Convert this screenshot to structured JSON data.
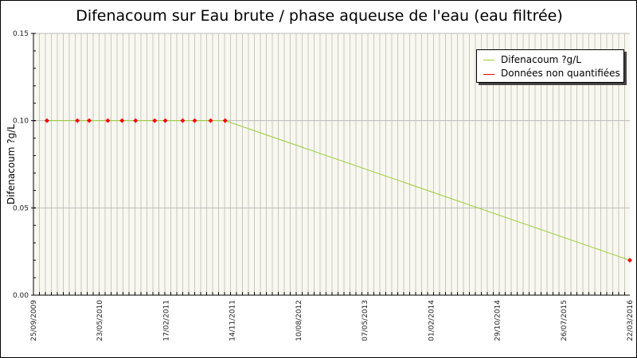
{
  "chart_data": {
    "type": "line",
    "title": "Difenacoum sur Eau brute / phase aqueuse de l'eau (eau filtrée)",
    "xlabel": "",
    "ylabel": "Difenacoum ?g/L",
    "ylim": [
      0,
      0.15
    ],
    "yticks": [
      "0.00",
      "0.05",
      "0.10",
      "0.15"
    ],
    "xticks": [
      "25/09/2009",
      "23/05/2010",
      "17/02/2011",
      "14/11/2011",
      "10/08/2012",
      "07/05/2013",
      "01/02/2014",
      "29/10/2014",
      "26/07/2015",
      "22/03/2016"
    ],
    "grid": true,
    "legend_position": "top-right",
    "legend": [
      "Difenacoum ?g/L",
      "Données non quantifiées"
    ],
    "colors": {
      "line": "#9acd32",
      "non_quantified": "#ff0000",
      "plot_bg": "#f8f8f0",
      "grid": "#c8c8c0"
    },
    "series": [
      {
        "name": "Difenacoum ?g/L",
        "x": [
          "13/11/2009",
          "03/03/2010",
          "15/04/2010",
          "25/06/2010",
          "22/08/2010",
          "16/10/2010",
          "02/01/2011",
          "14/02/2011",
          "26/04/2011",
          "14/06/2011",
          "18/08/2011",
          "16/10/2011",
          "22/03/2016"
        ],
        "y": [
          0.1,
          0.1,
          0.1,
          0.1,
          0.1,
          0.1,
          0.1,
          0.1,
          0.1,
          0.1,
          0.1,
          0.1,
          0.02
        ],
        "non_quantified": [
          true,
          true,
          true,
          true,
          true,
          true,
          true,
          true,
          true,
          true,
          true,
          true,
          true
        ]
      }
    ]
  }
}
